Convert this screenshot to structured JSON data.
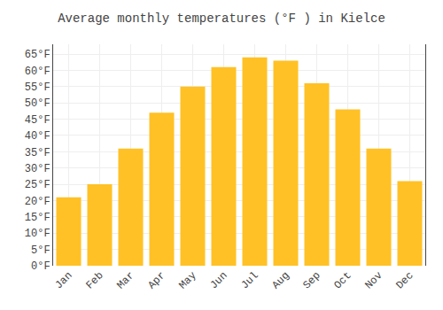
{
  "chart_data": {
    "type": "bar",
    "title": "Average monthly temperatures (°F ) in Kielce",
    "categories": [
      "Jan",
      "Feb",
      "Mar",
      "Apr",
      "May",
      "Jun",
      "Jul",
      "Aug",
      "Sep",
      "Oct",
      "Nov",
      "Dec"
    ],
    "values": [
      21,
      25,
      36,
      47,
      55,
      61,
      64,
      63,
      56,
      48,
      36,
      26
    ],
    "color": "#FFC125",
    "ylim": [
      0,
      68
    ],
    "yticks": [
      {
        "value": 0,
        "label": "0°F"
      },
      {
        "value": 5,
        "label": "5°F"
      },
      {
        "value": 10,
        "label": "10°F"
      },
      {
        "value": 15,
        "label": "15°F"
      },
      {
        "value": 20,
        "label": "20°F"
      },
      {
        "value": 25,
        "label": "25°F"
      },
      {
        "value": 30,
        "label": "30°F"
      },
      {
        "value": 35,
        "label": "35°F"
      },
      {
        "value": 40,
        "label": "40°F"
      },
      {
        "value": 45,
        "label": "45°F"
      },
      {
        "value": 50,
        "label": "50°F"
      },
      {
        "value": 55,
        "label": "55°F"
      },
      {
        "value": 60,
        "label": "60°F"
      },
      {
        "value": 65,
        "label": "65°F"
      }
    ],
    "grid": true
  }
}
